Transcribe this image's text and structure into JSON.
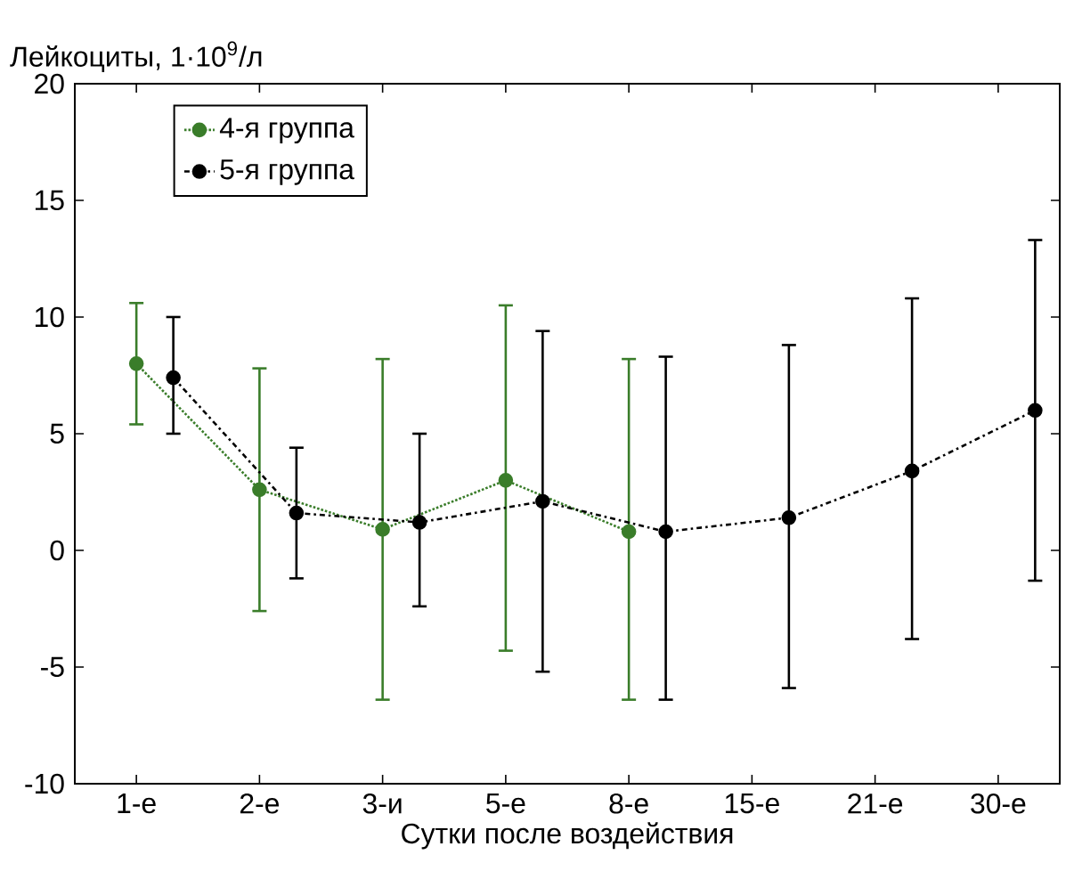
{
  "chart_data": {
    "type": "line",
    "ylabel": "Лейкоциты, 1·10$^{9}$/л",
    "xlabel": "Сутки после воздействия",
    "categories": [
      "1-е",
      "2-е",
      "3-и",
      "5-е",
      "8-е",
      "15-е",
      "21-е",
      "30-е"
    ],
    "series": [
      {
        "name": "4-я группа",
        "color": "#3a7d2a",
        "line_style": "dotted",
        "marker": "circle",
        "values": [
          8.0,
          2.6,
          0.9,
          3.0,
          0.8,
          null,
          null,
          null
        ],
        "errors": [
          [
            5.4,
            10.6
          ],
          [
            -2.6,
            7.8
          ],
          [
            -6.4,
            8.2
          ],
          [
            -4.3,
            10.5
          ],
          [
            -6.4,
            8.2
          ],
          null,
          null,
          null
        ]
      },
      {
        "name": "5-я группа",
        "color": "#000000",
        "line_style": "dashed",
        "marker": "circle",
        "values": [
          7.4,
          1.6,
          1.2,
          2.1,
          0.8,
          1.4,
          3.4,
          6.0
        ],
        "errors": [
          [
            5.0,
            10.0
          ],
          [
            -1.2,
            4.4
          ],
          [
            -2.4,
            5.0
          ],
          [
            -5.2,
            9.4
          ],
          [
            -6.4,
            8.3
          ],
          [
            -5.9,
            8.8
          ],
          [
            -3.8,
            10.8
          ],
          [
            -1.3,
            13.3
          ]
        ]
      }
    ],
    "ylim": [
      -10,
      20
    ],
    "yticks": [
      -10,
      -5,
      0,
      5,
      10,
      15,
      20
    ],
    "grid": false,
    "legend": "top left"
  }
}
